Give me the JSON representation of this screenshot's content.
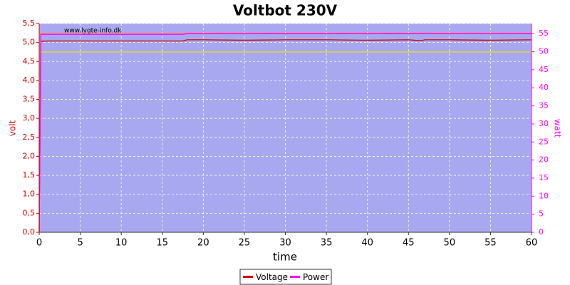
{
  "chart_data": {
    "type": "line",
    "title": "Voltbot 230V",
    "watermark": "www.lygte-info.dk",
    "x_label": "time",
    "y_label": "volt",
    "y2_label": "watt",
    "x": [
      0,
      0.2,
      1,
      5,
      10,
      15,
      17.5,
      18,
      20,
      25,
      30,
      35,
      40,
      45,
      46.5,
      47,
      50,
      55,
      60
    ],
    "series": [
      {
        "name": "Voltage",
        "color": "#cc0000",
        "values": [
          0,
          5.03,
          5.04,
          5.04,
          5.04,
          5.04,
          5.04,
          5.07,
          5.07,
          5.06,
          5.07,
          5.07,
          5.06,
          5.07,
          5.05,
          5.07,
          5.07,
          5.06,
          5.07
        ]
      },
      {
        "name": "Power",
        "color": "#ff00ff",
        "axis": "y2",
        "values": [
          0,
          54.8,
          54.8,
          54.8,
          54.8,
          54.8,
          54.8,
          55.0,
          55.0,
          55.0,
          55.0,
          55.0,
          55.0,
          55.0,
          55.0,
          55.0,
          55.0,
          55.0,
          55.0
        ]
      }
    ],
    "reference_lines": [
      {
        "value": 5.25,
        "color": "#ff9060"
      },
      {
        "value": 4.75,
        "color": "#e8e800"
      }
    ],
    "xlim": [
      0,
      60
    ],
    "xticks": [
      0,
      5,
      10,
      15,
      20,
      25,
      30,
      35,
      40,
      45,
      50,
      55,
      60
    ],
    "ylim": [
      0,
      5.5
    ],
    "yticks": [
      {
        "value": 0,
        "label": "0,0"
      },
      {
        "value": 0.5,
        "label": "0,5"
      },
      {
        "value": 1,
        "label": "1,0"
      },
      {
        "value": 1.5,
        "label": "1,5"
      },
      {
        "value": 2,
        "label": "2,0"
      },
      {
        "value": 2.5,
        "label": "2,5"
      },
      {
        "value": 3,
        "label": "3,0"
      },
      {
        "value": 3.5,
        "label": "3,5"
      },
      {
        "value": 4,
        "label": "4,0"
      },
      {
        "value": 4.5,
        "label": "4,5"
      },
      {
        "value": 5,
        "label": "5,0"
      },
      {
        "value": 5.5,
        "label": "5,5"
      }
    ],
    "y2lim": [
      0,
      57.8
    ],
    "y2ticks": [
      0,
      5,
      10,
      15,
      20,
      25,
      30,
      35,
      40,
      45,
      50,
      55
    ],
    "grid": true,
    "plot_color": "#a8a8f0",
    "legend": "bottom"
  }
}
